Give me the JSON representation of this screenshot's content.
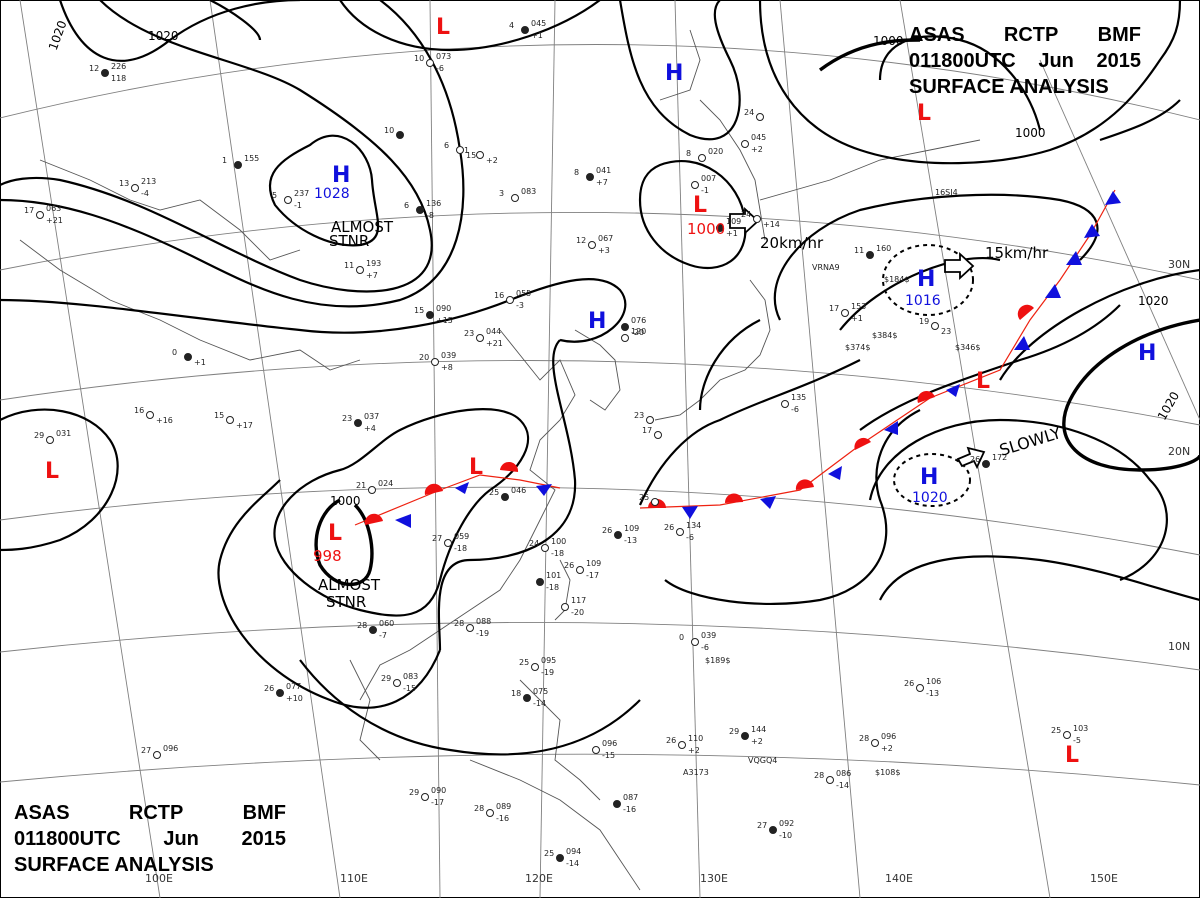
{
  "header": {
    "line1": [
      "ASAS",
      "RCTP",
      "BMF"
    ],
    "line2": [
      "011800UTC",
      "Jun",
      "2015"
    ],
    "line3": "SURFACE  ANALYSIS"
  },
  "isobar_labels": {
    "i1020a": "1020",
    "i1020b": "1020",
    "i1000a": "1000",
    "i1000b": "1000",
    "i1000c": "1000",
    "i1020c": "1020",
    "i1020d": "1020"
  },
  "pressure_systems": [
    {
      "id": "h-mongolia",
      "kind": "H",
      "value": "1028",
      "color": "#1010dd"
    },
    {
      "id": "h-korea",
      "kind": "H",
      "value": "",
      "color": "#1010dd"
    },
    {
      "id": "h-okhotsk",
      "kind": "H",
      "value": "",
      "color": "#1010dd"
    },
    {
      "id": "h-pacific-n",
      "kind": "H",
      "value": "1016",
      "color": "#1010dd"
    },
    {
      "id": "h-pacific-e",
      "kind": "H",
      "value": "",
      "color": "#1010dd"
    },
    {
      "id": "h-pacific-s",
      "kind": "H",
      "value": "1020",
      "color": "#1010dd"
    },
    {
      "id": "l-top",
      "kind": "L",
      "value": "",
      "color": "#ee1111"
    },
    {
      "id": "l-hokkaido",
      "kind": "L",
      "value": "1000",
      "color": "#ee1111"
    },
    {
      "id": "l-aleut",
      "kind": "L",
      "value": "",
      "color": "#ee1111"
    },
    {
      "id": "l-west",
      "kind": "L",
      "value": "",
      "color": "#ee1111"
    },
    {
      "id": "l-sichuan",
      "kind": "L",
      "value": "998",
      "color": "#ee1111"
    },
    {
      "id": "l-china",
      "kind": "L",
      "value": "",
      "color": "#ee1111"
    },
    {
      "id": "l-front",
      "kind": "L",
      "value": "",
      "color": "#ee1111"
    },
    {
      "id": "l-se",
      "kind": "L",
      "value": "",
      "color": "#ee1111"
    }
  ],
  "annotations": {
    "almost_stnr_1": "ALMOST",
    "almost_stnr_1b": "STNR",
    "almost_stnr_2": "ALMOST",
    "almost_stnr_2b": "STNR",
    "move_1": "20km/hr",
    "move_2": "15km/hr",
    "move_3": "SLOWLY"
  },
  "lat_labels": [
    "30N",
    "20N",
    "10N"
  ],
  "lon_labels": [
    "100E",
    "110E",
    "120E",
    "130E",
    "140E",
    "150E"
  ],
  "stations": [
    [
      "12",
      "226",
      "118"
    ],
    [
      "13",
      "213",
      "-4"
    ],
    [
      "17",
      "063",
      "+21"
    ],
    [
      "1",
      "155",
      ""
    ],
    [
      "5",
      "237",
      "-1"
    ],
    [
      "10",
      "073",
      "-6"
    ],
    [
      "4",
      "045",
      "+1"
    ],
    [
      "6",
      "",
      "15"
    ],
    [
      "1",
      "",
      "+2"
    ],
    [
      "6",
      "136",
      "-8"
    ],
    [
      "11",
      "193",
      "+7"
    ],
    [
      "3",
      "083",
      ""
    ],
    [
      "8",
      "041",
      "+7"
    ],
    [
      "12",
      "067",
      "+3"
    ],
    [
      "16",
      "055",
      "-3"
    ],
    [
      "15",
      "090",
      "+15"
    ],
    [
      "23",
      "044",
      "+21"
    ],
    [
      "20",
      "039",
      "+8"
    ],
    [
      "0",
      "",
      "+1"
    ],
    [
      "16",
      "",
      "+16"
    ],
    [
      "15",
      "",
      "+17"
    ],
    [
      "23",
      "037",
      "+4"
    ],
    [
      "29",
      "031",
      ""
    ],
    [
      "21",
      "024",
      ""
    ],
    [
      "25",
      "046",
      ""
    ],
    [
      "27",
      "059",
      "-18"
    ],
    [
      "24",
      "100",
      "-18"
    ],
    [
      "26",
      "109",
      "-13"
    ],
    [
      "26",
      "109",
      "-17"
    ],
    [
      "26",
      "134",
      "-6"
    ],
    [
      "28",
      "060",
      "-7"
    ],
    [
      "28",
      "088",
      "-19"
    ],
    [
      "29",
      "083",
      "-15"
    ],
    [
      "26",
      "077",
      "+10"
    ],
    [
      "27",
      "096",
      ""
    ],
    [
      "25",
      "095",
      "-19"
    ],
    [
      "18",
      "075",
      "-14"
    ],
    [
      "29",
      "090",
      "-17"
    ],
    [
      "28",
      "089",
      "-16"
    ],
    [
      "25",
      "094",
      "-14"
    ],
    [
      "0",
      "039",
      "-6"
    ],
    [
      "26",
      "110",
      "+2"
    ],
    [
      "29",
      "144",
      "+2"
    ],
    [
      "28",
      "096",
      "+2"
    ],
    [
      "28",
      "086",
      "-14"
    ],
    [
      "27",
      "092",
      "-10"
    ],
    [
      "26",
      "106",
      "-13"
    ],
    [
      "25",
      "103",
      "-5"
    ],
    [
      "26",
      "172",
      ""
    ],
    [
      "17",
      "153",
      "+1"
    ],
    [
      "19",
      "",
      "23"
    ],
    [
      "11",
      "160",
      ""
    ],
    [
      "8",
      "020",
      ""
    ],
    [
      "24",
      "",
      "+14"
    ],
    [
      "",
      "109",
      "+1"
    ],
    [
      "",
      "007",
      "-1"
    ],
    [
      "",
      "120",
      ""
    ],
    [
      "",
      "076",
      "-20"
    ],
    [
      "",
      "135",
      "-6"
    ],
    [
      "",
      "045",
      "+2"
    ],
    [
      "",
      "101",
      "-18"
    ],
    [
      "",
      "117",
      "-20"
    ],
    [
      "",
      "096",
      "-15"
    ],
    [
      "",
      "087",
      "-16"
    ],
    [
      "23",
      "",
      ""
    ],
    [
      "17",
      "",
      ""
    ],
    [
      "10",
      "",
      ""
    ],
    [
      "24",
      "",
      ""
    ],
    [
      "25",
      "",
      ""
    ]
  ],
  "station_ids": [
    "VRNA9",
    "$374$",
    "$384$",
    "$346$",
    "$189$",
    "A3173",
    "VQGQ4",
    "$108$",
    "$184$",
    "16SI4"
  ],
  "colors": {
    "high": "#1010dd",
    "low": "#ee1111",
    "warm_front": "#ee1111",
    "cold_front": "#1010dd"
  }
}
